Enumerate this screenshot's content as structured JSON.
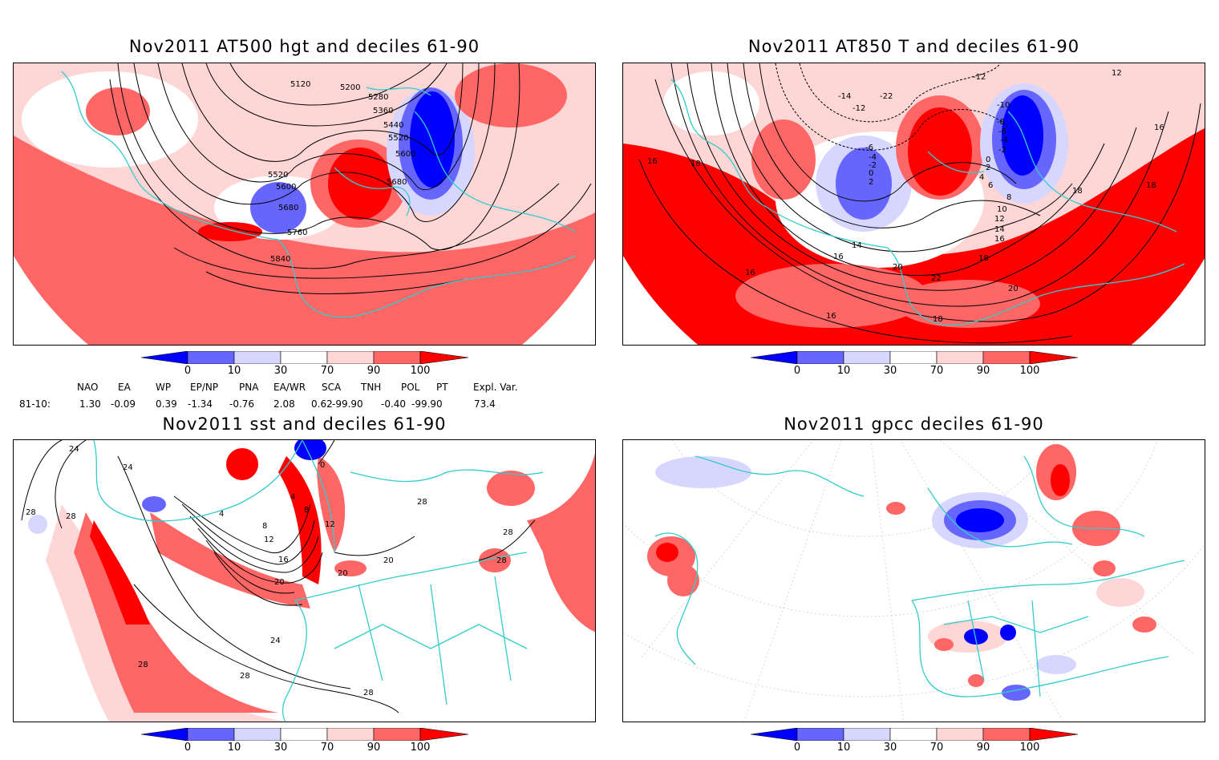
{
  "panels": [
    {
      "id": "hgt500",
      "title": "Nov2011 AT500 hgt and deciles 61-90",
      "contour_labels": [
        "5120",
        "5200",
        "5280",
        "5360",
        "5440",
        "5520",
        "5600",
        "5680",
        "5520",
        "5600",
        "5680",
        "5760",
        "5840"
      ]
    },
    {
      "id": "t850",
      "title": "Nov2011 AT850 T and deciles 61-90",
      "contour_labels": [
        "-12",
        "-14",
        "-12",
        "-22",
        "-10",
        "-8",
        "-6",
        "-4",
        "-2",
        "0",
        "2",
        "4",
        "6",
        "8",
        "10",
        "12",
        "14",
        "16",
        "18",
        "20",
        "22",
        "16",
        "18",
        "16",
        "16",
        "18",
        "20",
        "18",
        "18",
        "16",
        "12",
        "14",
        "16",
        "-6",
        "-4",
        "-2",
        "0",
        "2"
      ]
    },
    {
      "id": "sst",
      "title": "Nov2011 sst and deciles 61-90",
      "contour_labels": [
        "24",
        "28",
        "28",
        "24",
        "4",
        "8",
        "12",
        "16",
        "20",
        "20",
        "20",
        "28",
        "28",
        "28",
        "24",
        "28",
        "28",
        "28",
        "0",
        "4",
        "8",
        "12"
      ]
    },
    {
      "id": "gpcc",
      "title": "Nov2011 gpcc deciles 61-90",
      "contour_labels": []
    }
  ],
  "colorbar": {
    "labels": [
      "0",
      "10",
      "30",
      "70",
      "90",
      "100"
    ],
    "colors": [
      "#0000ff",
      "#6666ff",
      "#d6d6ff",
      "#ffffff",
      "#ffd6d6",
      "#ff6666",
      "#ff0000"
    ]
  },
  "indices": {
    "headers": [
      "NAO",
      "EA",
      "WP",
      "EP/NP",
      "PNA",
      "EA/WR",
      "SCA",
      "TNH",
      "POL",
      "PT",
      "Expl. Var."
    ],
    "row_label": "81-10:",
    "values": [
      "1.30",
      "-0.09",
      "0.39",
      "-1.34",
      "-0.76",
      "2.08",
      "0.62",
      "-99.90",
      "-0.40",
      "-99.90",
      "73.4"
    ]
  },
  "colors": {
    "coast": "#33cccc",
    "frame": "#000000"
  }
}
